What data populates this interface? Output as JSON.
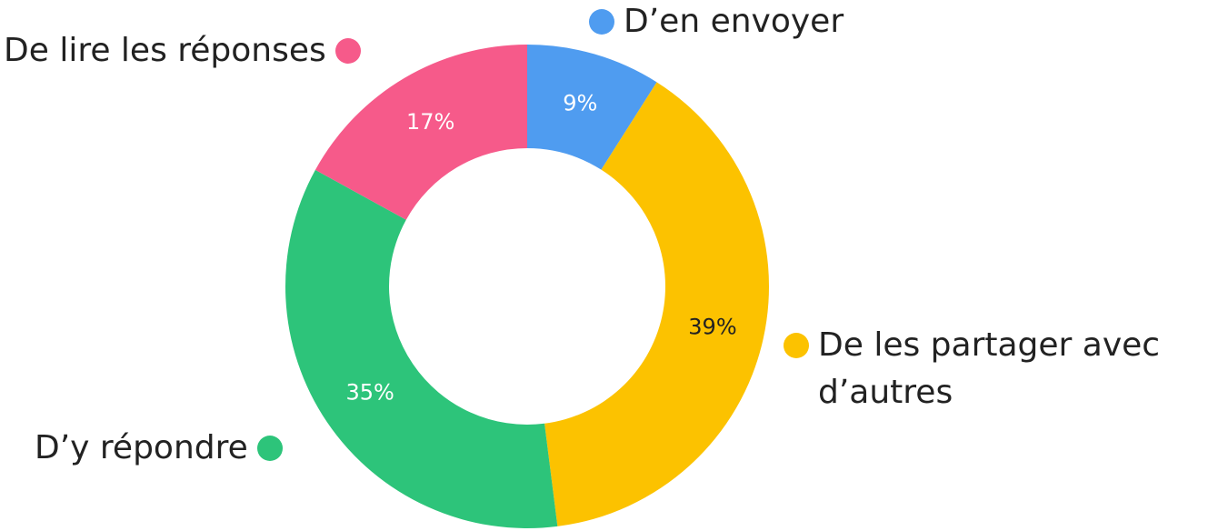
{
  "chart_data": {
    "type": "donut",
    "categories": [
      "D’en envoyer",
      "De les partager avec d’autres",
      "D’y répondre",
      "De lire les réponses"
    ],
    "values": [
      9,
      39,
      35,
      17
    ],
    "value_labels": [
      "9%",
      "39%",
      "35%",
      "17%"
    ],
    "colors": [
      "#4f9cf0",
      "#fcc200",
      "#2dc47a",
      "#f65a8a"
    ]
  }
}
